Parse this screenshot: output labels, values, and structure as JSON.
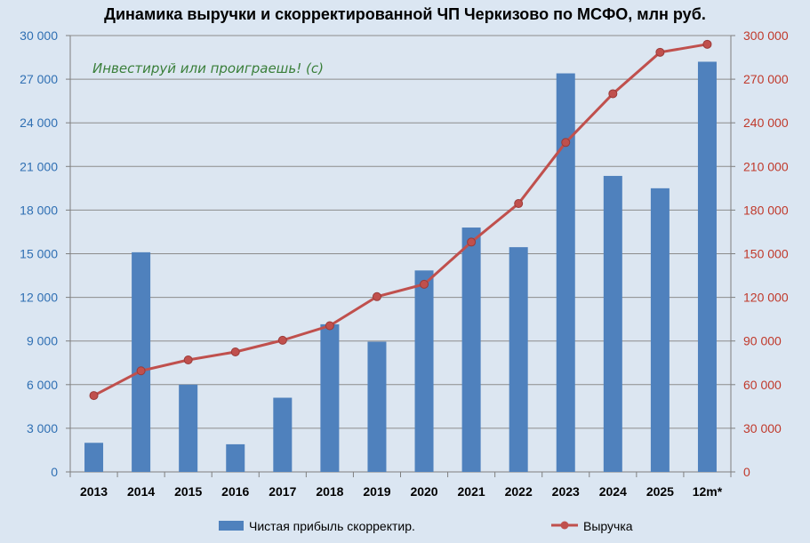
{
  "chart_data": {
    "type": "bar",
    "title": "Динамика выручки и скорректированной ЧП Черкизово по МСФО, млн руб.",
    "annotation": "Инвестируй или проиграешь! (с)",
    "categories": [
      "2013",
      "2014",
      "2015",
      "2016",
      "2017",
      "2018",
      "2019",
      "2020",
      "2021",
      "2022",
      "2023",
      "2024",
      "2025",
      "12m*"
    ],
    "series": [
      {
        "name": "Чистая прибыль скорректир.",
        "type": "bar",
        "axis": "left",
        "color": "#4f81bd",
        "values": [
          2000,
          15100,
          6000,
          1900,
          5100,
          10150,
          8950,
          13850,
          16800,
          15450,
          27400,
          20350,
          19500,
          28200
        ]
      },
      {
        "name": "Выручка",
        "type": "line",
        "axis": "right",
        "color": "#c0504d",
        "values": [
          52500,
          69500,
          77000,
          82500,
          90500,
          100500,
          120500,
          129000,
          158000,
          184500,
          226500,
          260000,
          288500,
          294000
        ]
      }
    ],
    "ylim_left": [
      0,
      30000
    ],
    "ylim_right": [
      0,
      300000
    ],
    "yticks_left": [
      "0",
      "3 000",
      "6 000",
      "9 000",
      "12 000",
      "15 000",
      "18 000",
      "21 000",
      "24 000",
      "27 000",
      "30 000"
    ],
    "yticks_right": [
      "0",
      "30 000",
      "60 000",
      "90 000",
      "120 000",
      "150 000",
      "180 000",
      "210 000",
      "240 000",
      "270 000",
      "300 000"
    ],
    "grid": true,
    "legend": "bottom"
  }
}
